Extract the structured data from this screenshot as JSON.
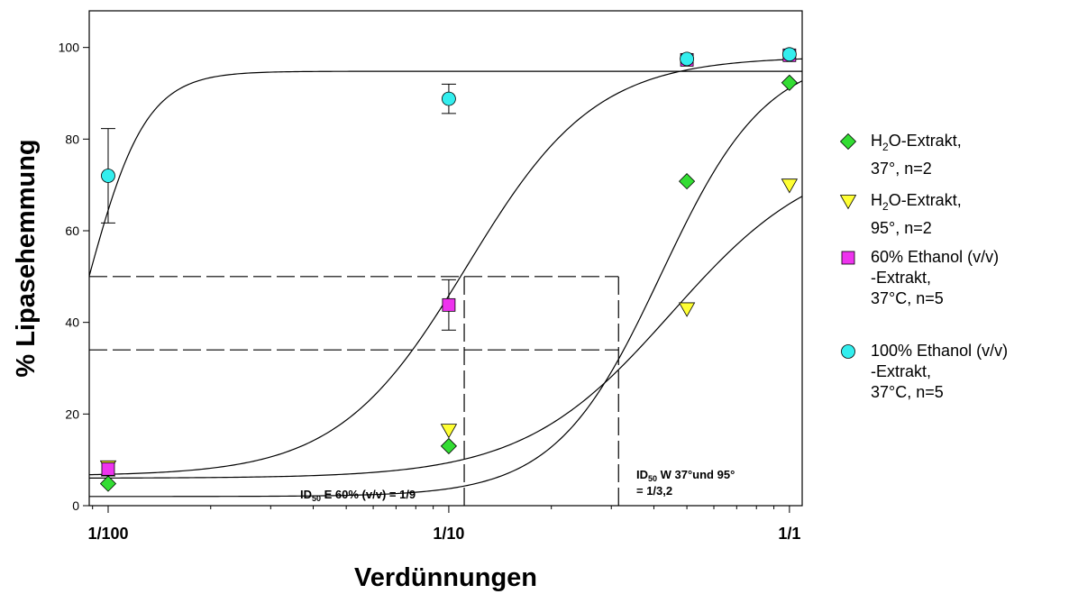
{
  "chart_data": {
    "type": "scatter",
    "xlabel": "Verdünnungen",
    "ylabel": "% Lipasehemmung",
    "x_scale": "log",
    "xlim": [
      0.0088,
      1.09
    ],
    "ylim": [
      0,
      108
    ],
    "x_ticks": [
      {
        "value": 0.01,
        "label": "1/100"
      },
      {
        "value": 0.1,
        "label": "1/10"
      },
      {
        "value": 1,
        "label": "1/1"
      }
    ],
    "y_ticks": [
      0,
      20,
      40,
      60,
      80,
      100
    ],
    "grid": false,
    "legend_position": "right",
    "series": [
      {
        "name_parts": [
          "H",
          "2",
          "O-Extrakt,",
          "37°, n=2"
        ],
        "marker": "diamond",
        "color": "#33dd33",
        "points": [
          {
            "x": 0.01,
            "y": 4.8
          },
          {
            "x": 0.1,
            "y": 13
          },
          {
            "x": 0.5,
            "y": 70.8
          },
          {
            "x": 1,
            "y": 92.3
          }
        ]
      },
      {
        "name_parts": [
          "H",
          "2",
          "O-Extrakt,",
          "95°, n=2"
        ],
        "marker": "triangle-down",
        "color": "#ffff33",
        "points": [
          {
            "x": 0.01,
            "y": 8.5
          },
          {
            "x": 0.1,
            "y": 16.5
          },
          {
            "x": 0.5,
            "y": 43
          },
          {
            "x": 1,
            "y": 70
          }
        ]
      },
      {
        "name_lines": [
          "60% Ethanol (v/v)",
          "-Extrakt,",
          "37°C, n=5"
        ],
        "marker": "square",
        "color": "#ee33ee",
        "points": [
          {
            "x": 0.01,
            "y": 8,
            "err": 1.5
          },
          {
            "x": 0.1,
            "y": 43.8,
            "err": 5.5
          },
          {
            "x": 0.5,
            "y": 97.3
          },
          {
            "x": 1,
            "y": 98.3
          }
        ]
      },
      {
        "name_lines": [
          "100% Ethanol (v/v)",
          "-Extrakt,",
          "37°C, n=5"
        ],
        "marker": "circle",
        "color": "#33eeee",
        "points": [
          {
            "x": 0.01,
            "y": 72,
            "err": 10.3
          },
          {
            "x": 0.1,
            "y": 88.8,
            "err": 3.2
          },
          {
            "x": 0.5,
            "y": 97.5
          },
          {
            "x": 1,
            "y": 98.5
          }
        ]
      }
    ],
    "fit_curves": [
      {
        "bottom": 2,
        "top": 99,
        "ec50": 0.42,
        "hill": 2.8
      },
      {
        "bottom": 6,
        "top": 78,
        "ec50": 0.45,
        "hill": 2.0
      },
      {
        "bottom": 6.5,
        "top": 98,
        "ec50": 0.113,
        "hill": 2.3
      },
      {
        "bottom": 0,
        "top": 94.8,
        "ec50": 0.0086,
        "hill": 5.0
      }
    ],
    "reference_lines": [
      {
        "y": 50,
        "x_end": 0.315
      },
      {
        "y": 34,
        "x_end": 0.315
      },
      {
        "x": 0.111,
        "y_end": 50
      },
      {
        "x": 0.315,
        "y_end": 50
      }
    ],
    "annotations": [
      {
        "lead": "ID",
        "sub": "50",
        "rest": " E 60% (v/v) = 1/9"
      },
      {
        "lead": "ID",
        "sub": "50",
        "rest": " W 37°und 95°",
        "line2": "= 1/3,2"
      }
    ]
  }
}
